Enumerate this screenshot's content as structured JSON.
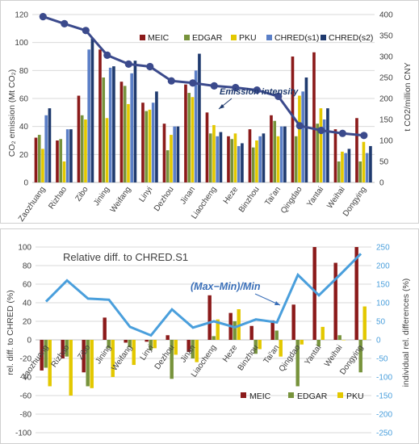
{
  "chart_data": [
    {
      "type": "bar",
      "title": "",
      "categories": [
        "Zaozhuang",
        "Rizhao",
        "Zibo",
        "Jining",
        "Weifang",
        "Linyi",
        "Dezhou",
        "Jinan",
        "Liaocheng",
        "Heze",
        "Binzhou",
        "Tai'an",
        "Qingdao",
        "Yantai",
        "Weihai",
        "Dongying"
      ],
      "ylabel": "CO₂ emission (Mt CO₂)",
      "y2label": "t CO2/million CNY",
      "ylim": [
        0,
        120
      ],
      "y2lim": [
        0,
        400
      ],
      "yticks": [
        "0",
        "20",
        "40",
        "60",
        "80",
        "100",
        "120"
      ],
      "y2ticks": [
        "0",
        "50",
        "100",
        "150",
        "200",
        "250",
        "300",
        "350",
        "400"
      ],
      "grid": true,
      "legend_position": "top-right",
      "series": [
        {
          "name": "MEIC",
          "color": "#8B1A1A",
          "values": [
            32,
            30,
            62,
            95,
            72,
            57,
            42,
            70,
            50,
            33,
            38,
            48,
            90,
            93,
            38,
            46
          ]
        },
        {
          "name": "EDGAR",
          "color": "#77933C",
          "values": [
            34,
            31,
            48,
            75,
            69,
            51,
            23,
            64,
            35,
            31,
            25,
            44,
            33,
            42,
            15,
            15
          ]
        },
        {
          "name": "PKU",
          "color": "#E3C800",
          "values": [
            24,
            15,
            45,
            46,
            56,
            52,
            34,
            61,
            41,
            35,
            30,
            33,
            62,
            53,
            22,
            29
          ]
        },
        {
          "name": "CHRED(s1)",
          "color": "#5B7FC7",
          "values": [
            48,
            38,
            95,
            82,
            78,
            57,
            40,
            80,
            33,
            26,
            33,
            40,
            65,
            45,
            21,
            21
          ]
        },
        {
          "name": "CHRED(s2)",
          "color": "#1F3A6E",
          "values": [
            53,
            38,
            103,
            83,
            87,
            65,
            40,
            92,
            36,
            28,
            35,
            40,
            75,
            53,
            24,
            26
          ]
        }
      ],
      "line_series": {
        "name": "Emission intensity",
        "axis": "right",
        "color": "#3B4A8C",
        "values": [
          395,
          378,
          362,
          303,
          282,
          276,
          242,
          237,
          230,
          226,
          220,
          205,
          135,
          124,
          117,
          112
        ]
      },
      "annotations": [
        "Emission intensity"
      ]
    },
    {
      "type": "bar",
      "title": "Relative diff. to CHRED.S1",
      "categories": [
        "Zaozhuang",
        "Rizhao",
        "Zibo",
        "Jining",
        "Weifang",
        "Linyi",
        "Dezhou",
        "Jinan",
        "Liaocheng",
        "Heze",
        "Binzhou",
        "Tai'an",
        "Qingdao",
        "Yantai",
        "Weihai",
        "Dongying"
      ],
      "ylabel": "rel. diff. to CHRED (%)",
      "y2label": "individual rel. differences (%)",
      "ylim": [
        -100,
        100
      ],
      "y2lim": [
        -250,
        250
      ],
      "yticks": [
        "-100",
        "-80",
        "-60",
        "-40",
        "-20",
        "0",
        "20",
        "40",
        "60",
        "80",
        "100"
      ],
      "y2ticks": [
        "-250",
        "-200",
        "-150",
        "-100",
        "-50",
        "0",
        "50",
        "100",
        "150",
        "200",
        "250"
      ],
      "grid": true,
      "legend_position": "bottom-right",
      "series": [
        {
          "name": "MEIC",
          "color": "#8B1A1A",
          "values": [
            -33,
            -20,
            -35,
            24,
            -3,
            -2,
            5,
            -13,
            48,
            29,
            15,
            21,
            38,
            100,
            83,
            100
          ]
        },
        {
          "name": "EDGAR",
          "color": "#77933C",
          "values": [
            -30,
            -18,
            -50,
            -9,
            -8,
            -11,
            -42,
            -20,
            4,
            20,
            -15,
            10,
            -50,
            -7,
            5,
            -35
          ]
        },
        {
          "name": "PKU",
          "color": "#E3C800",
          "values": [
            -50,
            -60,
            -52,
            -40,
            -27,
            -9,
            -16,
            -24,
            22,
            33,
            -10,
            -18,
            -5,
            14,
            0,
            36
          ]
        }
      ],
      "line_series": {
        "name": "(Max−Min)/Min",
        "axis": "right",
        "color": "#4A9FDC",
        "values": [
          103,
          160,
          111,
          108,
          35,
          12,
          82,
          33,
          50,
          34,
          55,
          47,
          175,
          120,
          175,
          232
        ]
      },
      "annotations": [
        "(Max−Min)/Min"
      ]
    }
  ]
}
